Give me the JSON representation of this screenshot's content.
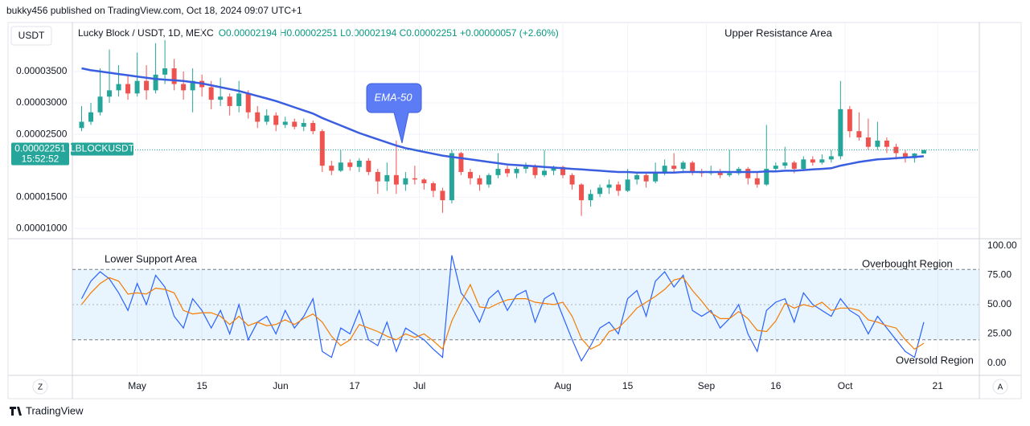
{
  "header": {
    "byline": "bukky456 published on TradingView.com, Oct 18, 2024 09:07 UTC+1"
  },
  "chart_data": [
    {
      "type": "candlestick",
      "currency": "USDT",
      "legend": "Lucky Block / USDT, 1D, MEXC",
      "ohlc_text": "O0.00002194 H0.00002251 L0.00002194 C0.00002251 +0.00000057 (+2.60%)",
      "colors": {
        "up": "#26a69a",
        "down": "#ef5350"
      },
      "x": [
        "2024-04-19",
        "2024-04-21",
        "2024-04-23",
        "2024-04-25",
        "2024-04-27",
        "2024-04-29",
        "2024-05-01",
        "2024-05-03",
        "2024-05-05",
        "2024-05-07",
        "2024-05-09",
        "2024-05-11",
        "2024-05-13",
        "2024-05-15",
        "2024-05-17",
        "2024-05-19",
        "2024-05-21",
        "2024-05-23",
        "2024-05-25",
        "2024-05-27",
        "2024-05-29",
        "2024-05-31",
        "2024-06-02",
        "2024-06-04",
        "2024-06-06",
        "2024-06-08",
        "2024-06-10",
        "2024-06-12",
        "2024-06-14",
        "2024-06-16",
        "2024-06-18",
        "2024-06-20",
        "2024-06-22",
        "2024-06-24",
        "2024-06-26",
        "2024-06-28",
        "2024-06-30",
        "2024-07-02",
        "2024-07-04",
        "2024-07-06",
        "2024-07-08",
        "2024-07-10",
        "2024-07-12",
        "2024-07-14",
        "2024-07-16",
        "2024-07-18",
        "2024-07-20",
        "2024-07-22",
        "2024-07-24",
        "2024-07-26",
        "2024-07-28",
        "2024-07-30",
        "2024-08-01",
        "2024-08-03",
        "2024-08-05",
        "2024-08-07",
        "2024-08-09",
        "2024-08-11",
        "2024-08-13",
        "2024-08-15",
        "2024-08-17",
        "2024-08-19",
        "2024-08-21",
        "2024-08-23",
        "2024-08-25",
        "2024-08-27",
        "2024-08-29",
        "2024-08-31",
        "2024-09-02",
        "2024-09-04",
        "2024-09-06",
        "2024-09-08",
        "2024-09-10",
        "2024-09-12",
        "2024-09-14",
        "2024-09-16",
        "2024-09-18",
        "2024-09-20",
        "2024-09-22",
        "2024-09-24",
        "2024-09-26",
        "2024-09-28",
        "2024-09-30",
        "2024-10-02",
        "2024-10-04",
        "2024-10-06",
        "2024-10-08",
        "2024-10-10",
        "2024-10-12",
        "2024-10-14",
        "2024-10-16",
        "2024-10-18"
      ],
      "open": [
        2.6e-05,
        2.7e-05,
        2.85e-05,
        3.1e-05,
        3.2e-05,
        3.3e-05,
        3.15e-05,
        3.35e-05,
        3.2e-05,
        3.45e-05,
        3.55e-05,
        3.3e-05,
        3.2e-05,
        3.35e-05,
        3.25e-05,
        3.05e-05,
        3.1e-05,
        2.95e-05,
        3.15e-05,
        2.85e-05,
        2.7e-05,
        2.8e-05,
        2.65e-05,
        2.7e-05,
        2.62e-05,
        2.68e-05,
        2.55e-05,
        2e-05,
        1.92e-05,
        2.05e-05,
        1.98e-05,
        2.08e-05,
        1.9e-05,
        1.75e-05,
        1.85e-05,
        1.7e-05,
        1.8e-05,
        1.78e-05,
        1.72e-05,
        1.6e-05,
        1.45e-05,
        2.2e-05,
        1.9e-05,
        1.8e-05,
        1.7e-05,
        1.85e-05,
        1.95e-05,
        1.88e-05,
        1.95e-05,
        2e-05,
        1.85e-05,
        1.92e-05,
        1.98e-05,
        1.85e-05,
        1.7e-05,
        1.45e-05,
        1.55e-05,
        1.65e-05,
        1.7e-05,
        1.6e-05,
        1.78e-05,
        1.85e-05,
        1.75e-05,
        1.9e-05,
        2e-05,
        1.95e-05,
        2.05e-05,
        1.9e-05,
        1.88e-05,
        1.9e-05,
        1.85e-05,
        1.88e-05,
        1.95e-05,
        1.8e-05,
        1.7e-05,
        1.95e-05,
        2e-05,
        2.05e-05,
        1.95e-05,
        2.1e-05,
        2.05e-05,
        2.1e-05,
        2.15e-05,
        2.9e-05,
        2.55e-05,
        2.45e-05,
        2.3e-05,
        2.4e-05,
        2.3e-05,
        2.2e-05,
        2.12e-05,
        2.194e-05
      ],
      "high": [
        2.95e-05,
        3e-05,
        3.55e-05,
        3.85e-05,
        3.6e-05,
        3.45e-05,
        3.8e-05,
        3.6e-05,
        3.95e-05,
        4e-05,
        3.7e-05,
        3.5e-05,
        3.55e-05,
        3.45e-05,
        3.35e-05,
        3.4e-05,
        3.15e-05,
        3.35e-05,
        3.2e-05,
        2.95e-05,
        2.9e-05,
        2.85e-05,
        2.78e-05,
        2.75e-05,
        2.75e-05,
        2.72e-05,
        2.58e-05,
        2.08e-05,
        2.25e-05,
        2.1e-05,
        2.12e-05,
        2.12e-05,
        1.95e-05,
        2.05e-05,
        2.4e-05,
        1.9e-05,
        2e-05,
        1.8e-05,
        1.75e-05,
        1.65e-05,
        2.25e-05,
        2.22e-05,
        1.95e-05,
        1.85e-05,
        1.88e-05,
        2.2e-05,
        2e-05,
        1.98e-05,
        2.05e-05,
        2.02e-05,
        2.25e-05,
        2e-05,
        2e-05,
        1.88e-05,
        1.72e-05,
        1.62e-05,
        1.7e-05,
        1.78e-05,
        1.75e-05,
        1.95e-05,
        1.9e-05,
        1.88e-05,
        2.05e-05,
        2.1e-05,
        2.2e-05,
        2.08e-05,
        2.08e-05,
        1.95e-05,
        2e-05,
        1.95e-05,
        2.25e-05,
        1.98e-05,
        1.98e-05,
        1.9e-05,
        2.65e-05,
        2.05e-05,
        2.3e-05,
        2.08e-05,
        2.15e-05,
        2.15e-05,
        2.18e-05,
        2.25e-05,
        3.35e-05,
        2.95e-05,
        2.85e-05,
        2.75e-05,
        2.7e-05,
        2.45e-05,
        2.35e-05,
        2.25e-05,
        2.2e-05,
        2.251e-05
      ],
      "low": [
        2.55e-05,
        2.65e-05,
        2.8e-05,
        3e-05,
        3.1e-05,
        3.05e-05,
        3.1e-05,
        3.05e-05,
        3.15e-05,
        3.3e-05,
        3.2e-05,
        3.05e-05,
        2.85e-05,
        3.1e-05,
        2.9e-05,
        2.95e-05,
        2.8e-05,
        2.85e-05,
        2.75e-05,
        2.6e-05,
        2.65e-05,
        2.55e-05,
        2.6e-05,
        2.58e-05,
        2.55e-05,
        2.5e-05,
        1.9e-05,
        1.85e-05,
        1.9e-05,
        1.92e-05,
        1.9e-05,
        1.85e-05,
        1.55e-05,
        1.6e-05,
        1.55e-05,
        1.6e-05,
        1.7e-05,
        1.62e-05,
        1.5e-05,
        1.25e-05,
        1.4e-05,
        1.85e-05,
        1.7e-05,
        1.6e-05,
        1.65e-05,
        1.8e-05,
        1.82e-05,
        1.8e-05,
        1.88e-05,
        1.8e-05,
        1.82e-05,
        1.85e-05,
        1.8e-05,
        1.62e-05,
        1.2e-05,
        1.35e-05,
        1.5e-05,
        1.55e-05,
        1.52e-05,
        1.58e-05,
        1.7e-05,
        1.65e-05,
        1.72e-05,
        1.85e-05,
        1.9e-05,
        1.88e-05,
        1.85e-05,
        1.82e-05,
        1.85e-05,
        1.8e-05,
        1.82e-05,
        1.85e-05,
        1.7e-05,
        1.65e-05,
        1.68e-05,
        1.9e-05,
        1.95e-05,
        1.88e-05,
        1.92e-05,
        2e-05,
        2.02e-05,
        2.05e-05,
        2.1e-05,
        2.45e-05,
        2.4e-05,
        2.25e-05,
        2.25e-05,
        2.2e-05,
        2.1e-05,
        2.05e-05,
        2.05e-05,
        2.194e-05
      ],
      "close": [
        2.7e-05,
        2.85e-05,
        3.1e-05,
        3.2e-05,
        3.3e-05,
        3.15e-05,
        3.35e-05,
        3.2e-05,
        3.45e-05,
        3.55e-05,
        3.3e-05,
        3.2e-05,
        3.35e-05,
        3.25e-05,
        3.05e-05,
        3.1e-05,
        2.95e-05,
        3.15e-05,
        2.85e-05,
        2.7e-05,
        2.8e-05,
        2.65e-05,
        2.7e-05,
        2.62e-05,
        2.68e-05,
        2.55e-05,
        2e-05,
        1.92e-05,
        2.05e-05,
        1.98e-05,
        2.08e-05,
        1.9e-05,
        1.75e-05,
        1.85e-05,
        1.7e-05,
        1.8e-05,
        1.78e-05,
        1.72e-05,
        1.6e-05,
        1.45e-05,
        2.2e-05,
        1.9e-05,
        1.8e-05,
        1.7e-05,
        1.85e-05,
        1.95e-05,
        1.88e-05,
        1.95e-05,
        2e-05,
        1.85e-05,
        1.92e-05,
        1.98e-05,
        1.85e-05,
        1.7e-05,
        1.45e-05,
        1.55e-05,
        1.65e-05,
        1.7e-05,
        1.6e-05,
        1.78e-05,
        1.85e-05,
        1.75e-05,
        1.9e-05,
        2e-05,
        1.95e-05,
        2.05e-05,
        1.9e-05,
        1.88e-05,
        1.9e-05,
        1.85e-05,
        1.88e-05,
        1.95e-05,
        1.8e-05,
        1.7e-05,
        1.95e-05,
        2e-05,
        2.05e-05,
        1.95e-05,
        2.1e-05,
        2.05e-05,
        2.1e-05,
        2.15e-05,
        2.9e-05,
        2.55e-05,
        2.45e-05,
        2.3e-05,
        2.4e-05,
        2.3e-05,
        2.2e-05,
        2.12e-05,
        2.194e-05,
        2.251e-05
      ],
      "ema": {
        "name": "EMA-50",
        "color": "#3a5ee0",
        "values": [
          3.55e-05,
          3.52e-05,
          3.5e-05,
          3.48e-05,
          3.46e-05,
          3.44e-05,
          3.42e-05,
          3.4e-05,
          3.38e-05,
          3.37e-05,
          3.36e-05,
          3.35e-05,
          3.33e-05,
          3.31e-05,
          3.28e-05,
          3.25e-05,
          3.22e-05,
          3.19e-05,
          3.15e-05,
          3.11e-05,
          3.07e-05,
          3.03e-05,
          2.98e-05,
          2.93e-05,
          2.88e-05,
          2.83e-05,
          2.76e-05,
          2.7e-05,
          2.64e-05,
          2.58e-05,
          2.52e-05,
          2.47e-05,
          2.42e-05,
          2.37e-05,
          2.32e-05,
          2.28e-05,
          2.25e-05,
          2.22e-05,
          2.19e-05,
          2.16e-05,
          2.14e-05,
          2.12e-05,
          2.1e-05,
          2.08e-05,
          2.06e-05,
          2.04e-05,
          2.02e-05,
          2.01e-05,
          2e-05,
          1.99e-05,
          1.98e-05,
          1.97e-05,
          1.96e-05,
          1.95e-05,
          1.94e-05,
          1.93e-05,
          1.92e-05,
          1.91e-05,
          1.9e-05,
          1.9e-05,
          1.89e-05,
          1.89e-05,
          1.89e-05,
          1.89e-05,
          1.89e-05,
          1.9e-05,
          1.9e-05,
          1.9e-05,
          1.9e-05,
          1.9e-05,
          1.9e-05,
          1.9e-05,
          1.9e-05,
          1.9e-05,
          1.91e-05,
          1.91e-05,
          1.92e-05,
          1.92e-05,
          1.93e-05,
          1.94e-05,
          1.95e-05,
          1.96e-05,
          2e-05,
          2.03e-05,
          2.06e-05,
          2.08e-05,
          2.1e-05,
          2.11e-05,
          2.12e-05,
          2.13e-05,
          2.14e-05,
          2.15e-05
        ]
      },
      "last_price_label": "0.00002251",
      "symbol": "LBLOCKUSDT",
      "countdown": "15:52:52",
      "annotations": [
        "Upper Resistance Area"
      ],
      "ylim": [
        8.5e-06,
        4.28e-05
      ],
      "yticks": [
        {
          "value": 1e-05,
          "label": "0.00001000"
        },
        {
          "value": 1.5e-05,
          "label": "0.00001500"
        },
        {
          "value": 2.5e-05,
          "label": "0.00002500"
        },
        {
          "value": 3e-05,
          "label": "0.00003000"
        },
        {
          "value": 3.5e-05,
          "label": "0.00003500"
        }
      ],
      "xlim": [
        "2024-04-17",
        "2024-10-30"
      ],
      "xticks": [
        {
          "value": "2024-05-01",
          "label": "May"
        },
        {
          "value": "2024-05-15",
          "label": "15"
        },
        {
          "value": "2024-06-01",
          "label": "Jun"
        },
        {
          "value": "2024-06-17",
          "label": "17"
        },
        {
          "value": "2024-07-01",
          "label": "Jul"
        },
        {
          "value": "2024-08-01",
          "label": "Aug"
        },
        {
          "value": "2024-08-15",
          "label": "15"
        },
        {
          "value": "2024-09-01",
          "label": "Sep"
        },
        {
          "value": "2024-09-16",
          "label": "16"
        },
        {
          "value": "2024-10-01",
          "label": "Oct"
        },
        {
          "value": "2024-10-21",
          "label": "21"
        }
      ],
      "grid": true
    },
    {
      "type": "line",
      "annotations": [
        "Lower Support Area",
        "Overbought Region",
        "Oversold Region"
      ],
      "band": [
        20,
        80
      ],
      "midline": 50,
      "series": [
        {
          "color": "#2962ff",
          "values": [
            55,
            70,
            78,
            72,
            60,
            45,
            68,
            50,
            75,
            65,
            40,
            30,
            55,
            45,
            30,
            45,
            25,
            50,
            20,
            35,
            40,
            25,
            45,
            30,
            40,
            55,
            10,
            5,
            30,
            25,
            45,
            20,
            15,
            35,
            10,
            30,
            25,
            20,
            12,
            5,
            92,
            60,
            50,
            35,
            55,
            62,
            45,
            58,
            62,
            35,
            55,
            60,
            40,
            20,
            2,
            15,
            30,
            35,
            25,
            55,
            62,
            40,
            70,
            78,
            65,
            75,
            45,
            40,
            45,
            30,
            38,
            50,
            25,
            10,
            45,
            52,
            55,
            35,
            60,
            50,
            45,
            40,
            55,
            45,
            40,
            25,
            40,
            30,
            20,
            10,
            5,
            35
          ]
        },
        {
          "color": "#f57c00",
          "values": [
            50,
            60,
            68,
            73,
            70,
            59,
            60,
            59,
            64,
            63,
            60,
            45,
            42,
            43,
            43,
            40,
            33,
            40,
            32,
            35,
            32,
            33,
            37,
            33,
            38,
            42,
            35,
            23,
            15,
            20,
            33,
            30,
            27,
            23,
            20,
            25,
            22,
            25,
            19,
            12,
            36,
            52,
            67,
            48,
            47,
            51,
            54,
            55,
            55,
            52,
            51,
            50,
            52,
            40,
            21,
            12,
            16,
            27,
            30,
            38,
            47,
            52,
            57,
            63,
            71,
            73,
            62,
            53,
            43,
            38,
            38,
            44,
            38,
            28,
            27,
            36,
            51,
            47,
            50,
            48,
            52,
            45,
            47,
            47,
            45,
            37,
            35,
            32,
            30,
            20,
            12,
            17
          ]
        }
      ],
      "ylim": [
        -9.7,
        105.5
      ],
      "yticks": [
        {
          "value": 0,
          "label": "0.00"
        },
        {
          "value": 25,
          "label": "25.00"
        },
        {
          "value": 50,
          "label": "50.00"
        },
        {
          "value": 75,
          "label": "75.00"
        },
        {
          "value": 100,
          "label": "100.00"
        }
      ]
    }
  ],
  "footer": {
    "axis_left_button": "Z",
    "axis_right_button": "A",
    "brand": "TradingView"
  }
}
